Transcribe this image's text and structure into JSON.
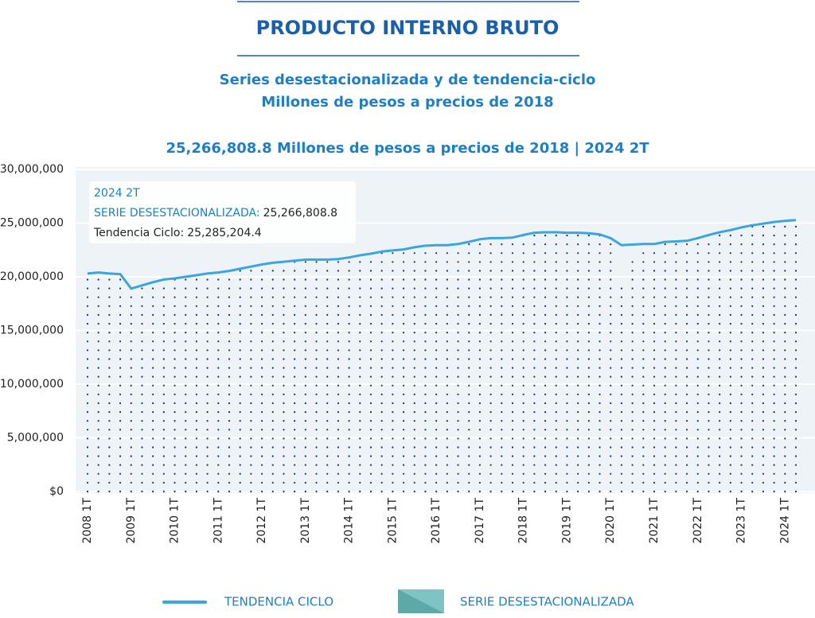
{
  "chart_data": {
    "type": "line",
    "title": "PRODUCTO INTERNO BRUTO",
    "subtitle": [
      "Series desestacionalizada y de tendencia-ciclo",
      "Millones de pesos a precios de 2018"
    ],
    "headline": "25,266,808.8 Millones de pesos a precios de 2018 | 2024 2T",
    "categories": [
      "2008 1T",
      null,
      null,
      null,
      "2009 1T",
      null,
      null,
      null,
      "2010 1T",
      null,
      null,
      null,
      "2011 1T",
      null,
      null,
      null,
      "2012 1T",
      null,
      null,
      null,
      "2013 1T",
      null,
      null,
      null,
      "2014 1T",
      null,
      null,
      null,
      "2015 1T",
      null,
      null,
      null,
      "2016 1T",
      null,
      null,
      null,
      "2017 1T",
      null,
      null,
      null,
      "2018 1T",
      null,
      null,
      null,
      "2019 1T",
      null,
      null,
      null,
      "2020 1T",
      null,
      null,
      null,
      "2021 1T",
      null,
      null,
      null,
      "2022 1T",
      null,
      null,
      null,
      "2023 1T",
      null,
      null,
      null,
      "2024 1T",
      null
    ],
    "series": [
      {
        "name": "TENDENCIA CICLO",
        "color": "#3aa6dc",
        "style": "line",
        "values": [
          20300000,
          20400000,
          20300000,
          20250000,
          18900000,
          19200000,
          19500000,
          19750000,
          19850000,
          20000000,
          20150000,
          20300000,
          20400000,
          20550000,
          20750000,
          20950000,
          21150000,
          21300000,
          21400000,
          21500000,
          21600000,
          21600000,
          21600000,
          21650000,
          21800000,
          22000000,
          22150000,
          22350000,
          22450000,
          22550000,
          22750000,
          22900000,
          22950000,
          22950000,
          23050000,
          23250000,
          23500000,
          23600000,
          23600000,
          23650000,
          23900000,
          24100000,
          24150000,
          24150000,
          24100000,
          24100000,
          24050000,
          23950000,
          23600000,
          22950000,
          23000000,
          23050000,
          23050000,
          23250000,
          23300000,
          23350000,
          23600000,
          23900000,
          24150000,
          24350000,
          24600000,
          24800000,
          24950000,
          25100000,
          25200000,
          25285204.4
        ]
      },
      {
        "name": "SERIE DESESTACIONALIZADA",
        "color": "#1a3a6b",
        "legend_color": "#7fc4c4",
        "style": "dots",
        "values": [
          20300000,
          20450000,
          20300000,
          20250000,
          18900000,
          19150000,
          19500000,
          19750000,
          19850000,
          20000000,
          20150000,
          20300000,
          20400000,
          20550000,
          20750000,
          20950000,
          21150000,
          21300000,
          21400000,
          21500000,
          21600000,
          21600000,
          21600000,
          21650000,
          21800000,
          22000000,
          22150000,
          22350000,
          22450000,
          22550000,
          22700000,
          22850000,
          22950000,
          23000000,
          23100000,
          23300000,
          23500000,
          23600000,
          23650000,
          23600000,
          23900000,
          24100000,
          24150000,
          24150000,
          24100000,
          24100000,
          24050000,
          24050000,
          23600000,
          19000000,
          21800000,
          22900000,
          23000000,
          23200000,
          23100000,
          23300000,
          23600000,
          23900000,
          24150000,
          24300000,
          24600000,
          24800000,
          24900000,
          25000000,
          25150000,
          25266808.8
        ]
      }
    ],
    "tooltip": {
      "category": "2024 2T",
      "lines": [
        {
          "label": "SERIE DESESTACIONALIZADA:",
          "value": "25,266,808.8"
        },
        {
          "label": "Tendencia Ciclo:",
          "value": "25,285,204.4"
        }
      ]
    },
    "ylim": [
      0,
      30000000
    ],
    "yticks": [
      {
        "value": 0,
        "label": "$0"
      },
      {
        "value": 5000000,
        "label": "5,000,000"
      },
      {
        "value": 10000000,
        "label": "10,000,000"
      },
      {
        "value": 15000000,
        "label": "15,000,000"
      },
      {
        "value": 20000000,
        "label": "20,000,000"
      },
      {
        "value": 25000000,
        "label": "25,000,000"
      },
      {
        "value": 30000000,
        "label": "30,000,000"
      }
    ],
    "grid": true
  }
}
